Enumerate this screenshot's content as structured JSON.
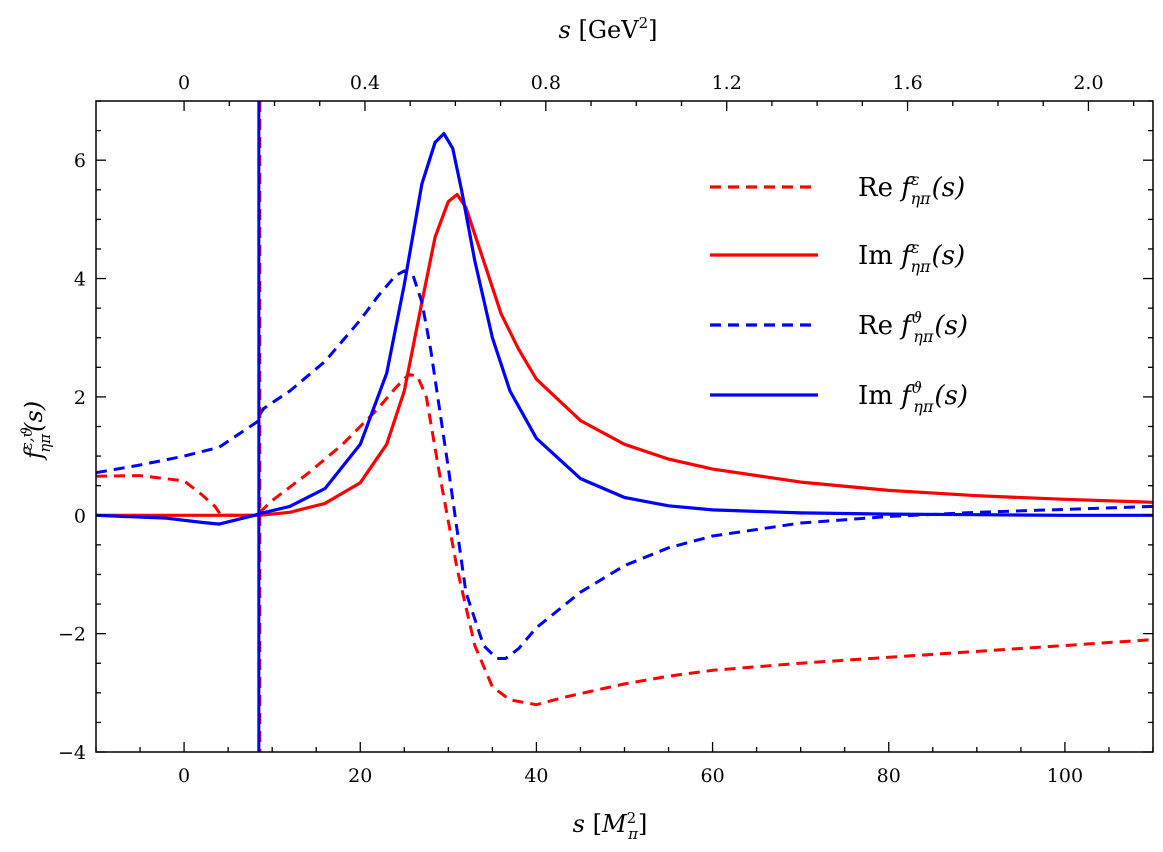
{
  "chart_data": {
    "type": "line",
    "xlabel": {
      "main": "s",
      "unit": "M",
      "unit_sub": "π",
      "unit_sup": "2"
    },
    "x2label": {
      "main": "s",
      "unit": "GeV",
      "unit_sup": "2"
    },
    "ylabel": {
      "main": "f",
      "sup": "ε,ϑ",
      "sub": "ηπ",
      "arg": "(s)"
    },
    "xlim": [
      -10,
      110
    ],
    "ylim": [
      -4,
      7
    ],
    "xticks": [
      0,
      20,
      40,
      60,
      80,
      100
    ],
    "xtick_labels": [
      "0",
      "20",
      "40",
      "60",
      "80",
      "100"
    ],
    "yticks": [
      -4,
      -2,
      0,
      2,
      4,
      6
    ],
    "ytick_labels": [
      "−4",
      "−2",
      "0",
      "2",
      "4",
      "6"
    ],
    "top_ticks_gev2": [
      0,
      0.4,
      0.8,
      1.2,
      1.6,
      2.0
    ],
    "top_tick_labels": [
      "0",
      "0.4",
      "0.8",
      "1.2",
      "1.6",
      "2.0"
    ],
    "grid": false,
    "legend_position": "top-right",
    "threshold_x": 8.6,
    "series": [
      {
        "name": "Re",
        "legend_sup": "ε",
        "legend_sub": "ηπ",
        "legend_arg": "(s)",
        "color": "#ff0000",
        "dash": true,
        "x": [
          -10,
          -5,
          0,
          2,
          3.5,
          4.2,
          8.5,
          8.6,
          10,
          14,
          18,
          22,
          24,
          25.5,
          26.5,
          27.5,
          29,
          31,
          33,
          35,
          37,
          40,
          43,
          46,
          50,
          55,
          60,
          70,
          80,
          90,
          100,
          110
        ],
        "y": [
          0.66,
          0.67,
          0.58,
          0.35,
          0.15,
          0.0,
          0.0,
          0.05,
          0.25,
          0.7,
          1.2,
          1.8,
          2.15,
          2.38,
          2.35,
          2.0,
          0.7,
          -0.9,
          -2.2,
          -2.9,
          -3.12,
          -3.2,
          -3.08,
          -2.98,
          -2.85,
          -2.72,
          -2.62,
          -2.5,
          -2.4,
          -2.3,
          -2.2,
          -2.1
        ]
      },
      {
        "name": "Im",
        "legend_sup": "ε",
        "legend_sub": "ηπ",
        "legend_arg": "(s)",
        "color": "#ff0000",
        "dash": false,
        "x": [
          -10,
          0,
          8.6,
          12,
          16,
          20,
          23,
          25,
          27,
          28.5,
          30,
          31,
          32,
          34,
          36,
          38,
          40,
          45,
          50,
          55,
          60,
          70,
          80,
          90,
          100,
          110
        ],
        "y": [
          0.0,
          0.0,
          0.0,
          0.05,
          0.2,
          0.55,
          1.2,
          2.1,
          3.6,
          4.7,
          5.3,
          5.42,
          5.2,
          4.3,
          3.4,
          2.8,
          2.3,
          1.6,
          1.2,
          0.95,
          0.78,
          0.56,
          0.42,
          0.33,
          0.27,
          0.22
        ]
      },
      {
        "name": "Re",
        "legend_sup": "ϑ",
        "legend_sub": "ηπ",
        "legend_arg": "(s)",
        "color": "#0000ff",
        "dash": true,
        "x": [
          -10,
          -5,
          0,
          4,
          6,
          8.5,
          8.6,
          9,
          12,
          16,
          20,
          22,
          24,
          25,
          26,
          27,
          28,
          30,
          32,
          34,
          35.5,
          36.5,
          38,
          40,
          45,
          50,
          55,
          60,
          70,
          80,
          90,
          100,
          110
        ],
        "y": [
          0.72,
          0.85,
          1.0,
          1.15,
          1.35,
          1.6,
          1.7,
          1.8,
          2.1,
          2.6,
          3.3,
          3.7,
          4.05,
          4.13,
          4.05,
          3.6,
          2.8,
          0.8,
          -1.3,
          -2.2,
          -2.42,
          -2.42,
          -2.25,
          -1.9,
          -1.3,
          -0.85,
          -0.55,
          -0.35,
          -0.13,
          -0.02,
          0.05,
          0.1,
          0.15
        ]
      },
      {
        "name": "Im",
        "legend_sup": "ϑ",
        "legend_sub": "ηπ",
        "legend_arg": "(s)",
        "color": "#0000ff",
        "dash": false,
        "x": [
          -10,
          -2,
          2,
          4,
          8,
          8.6,
          9.5,
          12,
          16,
          20,
          23,
          25,
          27,
          28.5,
          29.5,
          30.5,
          31.5,
          33,
          35,
          37,
          40,
          45,
          50,
          55,
          60,
          70,
          80,
          90,
          100,
          110
        ],
        "y": [
          0.0,
          -0.05,
          -0.12,
          -0.15,
          0.0,
          0.03,
          0.06,
          0.15,
          0.45,
          1.2,
          2.4,
          3.9,
          5.6,
          6.3,
          6.45,
          6.2,
          5.5,
          4.3,
          3.0,
          2.1,
          1.3,
          0.62,
          0.3,
          0.16,
          0.09,
          0.04,
          0.02,
          0.01,
          0.0,
          0.0
        ]
      }
    ]
  }
}
